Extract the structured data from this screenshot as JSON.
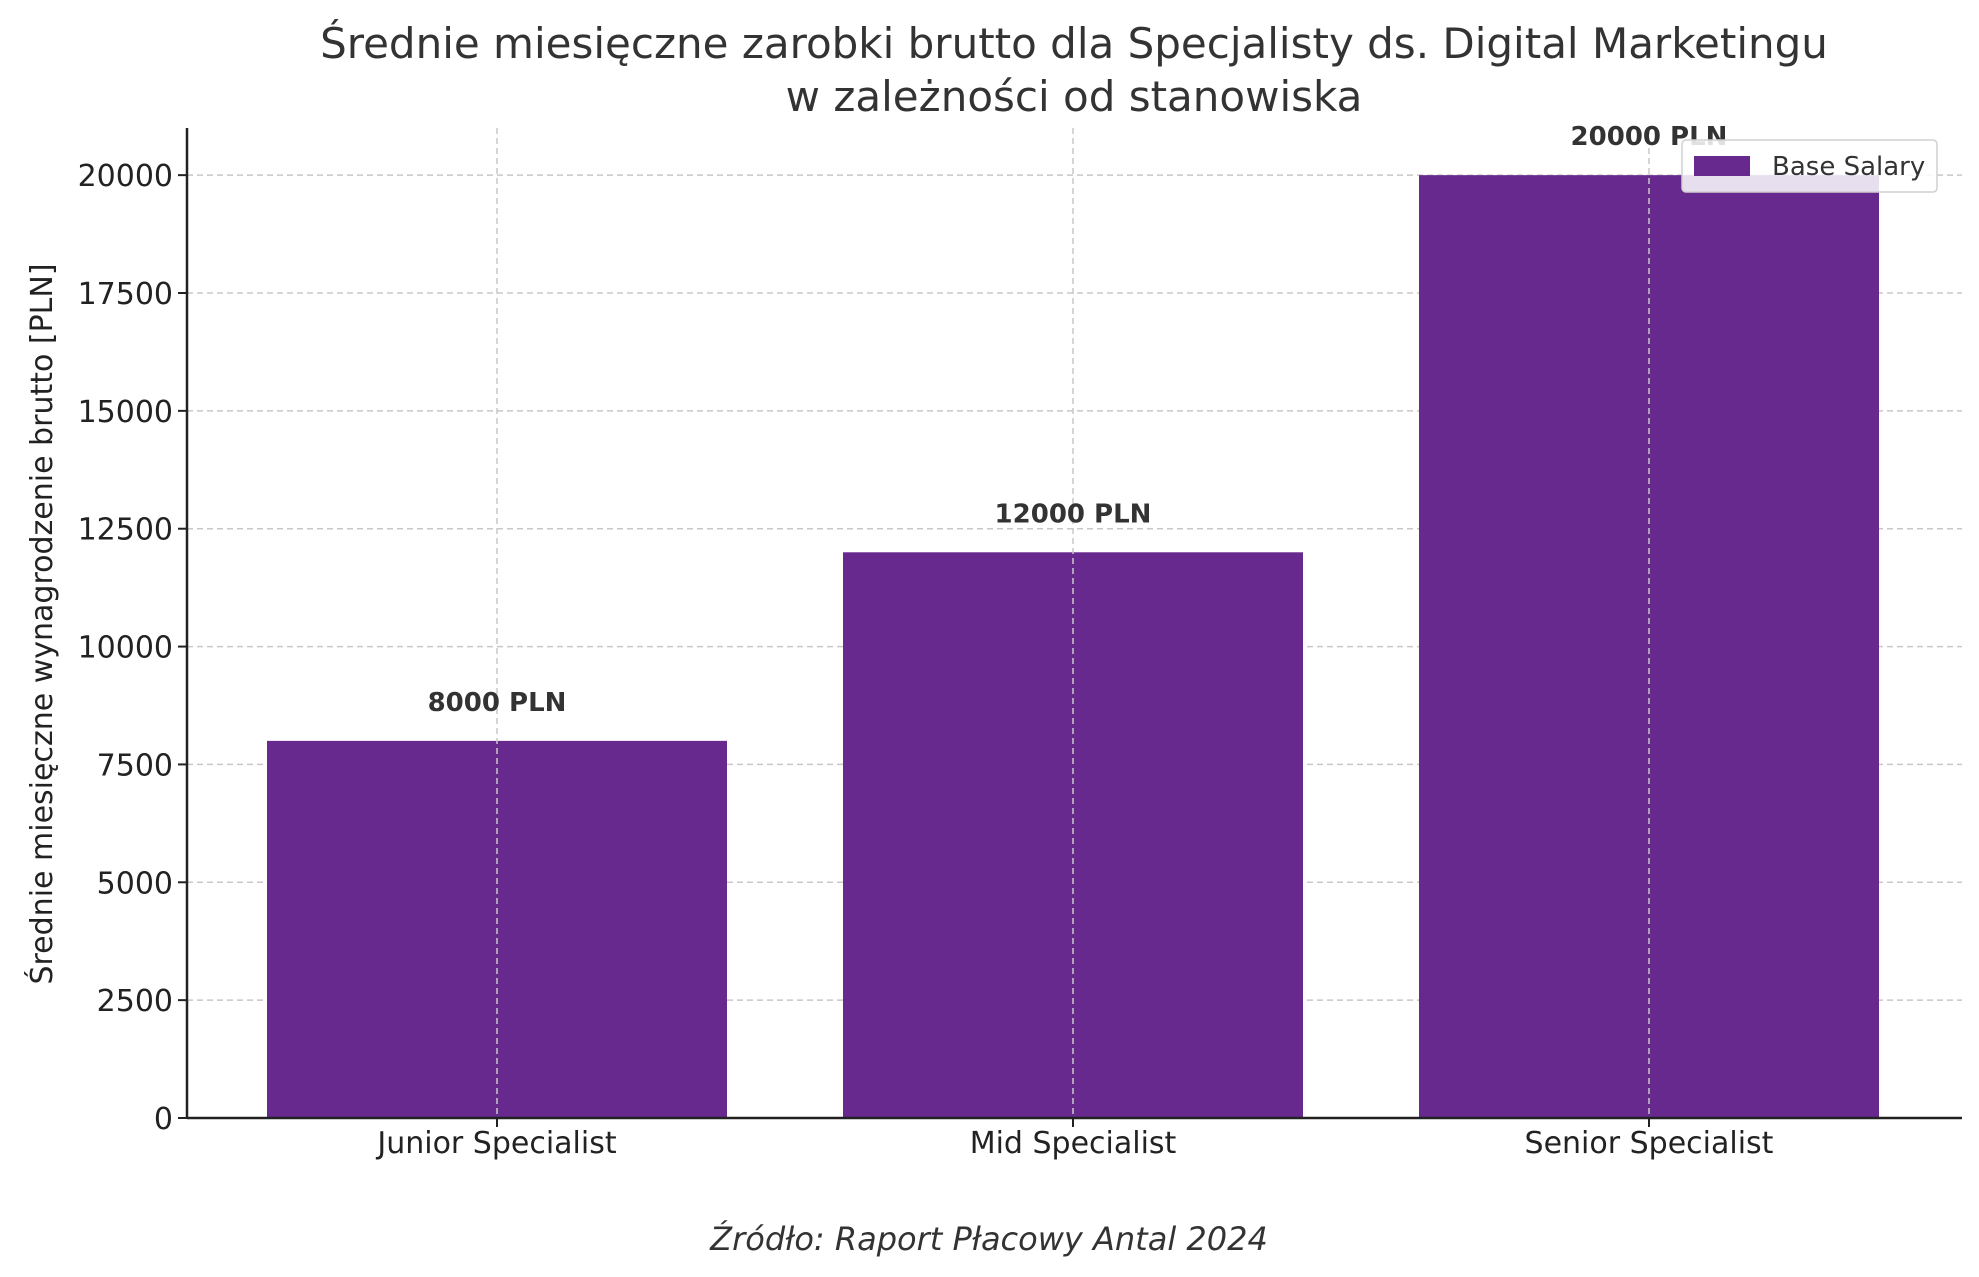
{
  "chart_data": {
    "type": "bar",
    "title_line1": "Średnie miesięczne zarobki brutto dla Specjalisty ds. Digital Marketingu",
    "title_line2": "w zależności od stanowiska",
    "xlabel": "",
    "ylabel": "Średnie miesięczne wynagrodzenie brutto [PLN]",
    "categories": [
      "Junior Specialist",
      "Mid Specialist",
      "Senior Specialist"
    ],
    "series": [
      {
        "name": "Base Salary",
        "values": [
          8000,
          12000,
          20000
        ],
        "color": "#68298f"
      }
    ],
    "data_labels": [
      "8000 PLN",
      "12000 PLN",
      "20000 PLN"
    ],
    "yticks": [
      0,
      2500,
      5000,
      7500,
      10000,
      12500,
      15000,
      17500,
      20000
    ],
    "ylim": [
      0,
      21000
    ],
    "grid": true,
    "legend_position": "top-right",
    "source": "Źródło: Raport Płacowy Antal 2024"
  }
}
